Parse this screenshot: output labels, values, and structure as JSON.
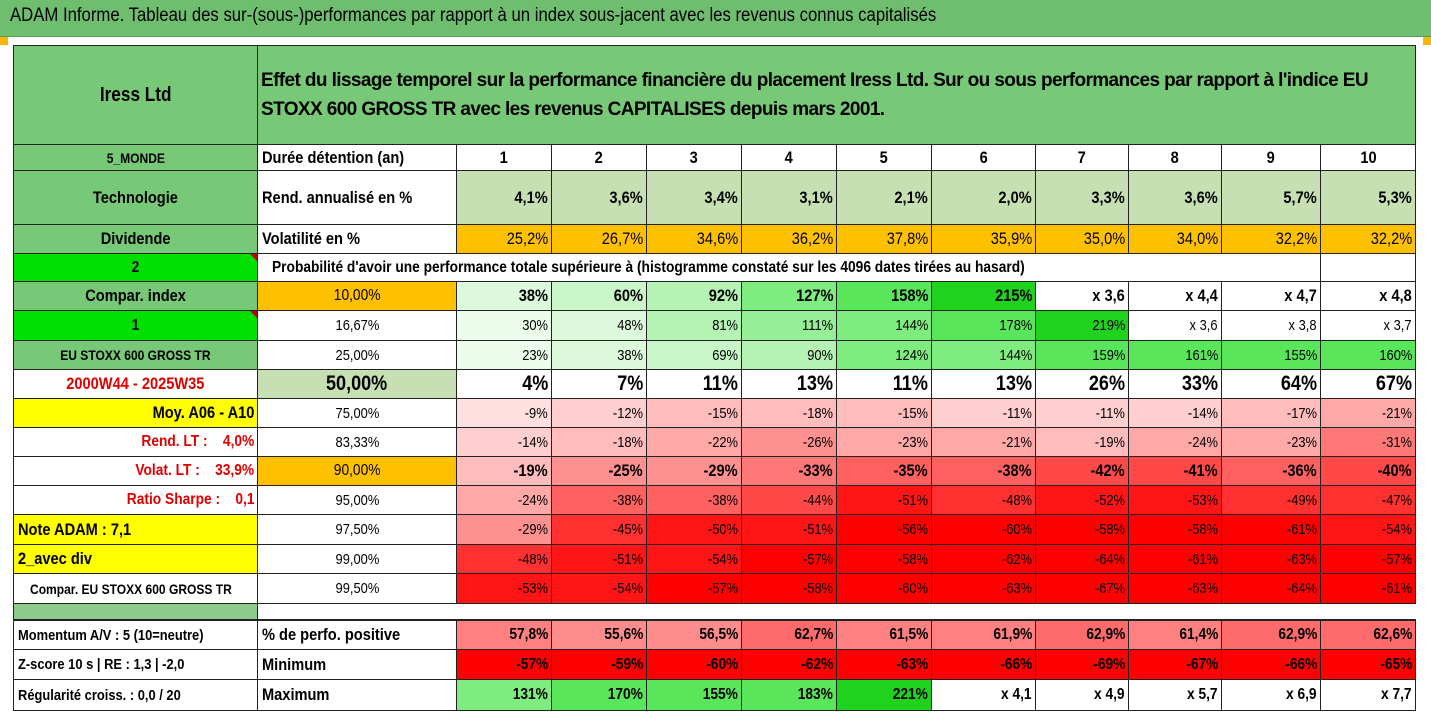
{
  "title": "ADAM Informe. Tableau des sur-(sous-)performances par rapport à un index sous-jacent avec les revenus connus capitalisés",
  "header": {
    "company": "Iress Ltd",
    "description": "Effet du lissage temporel sur la performance financière du placement Iress Ltd. Sur ou sous performances par rapport à l'indice EU STOXX 600 GROSS TR avec les revenus CAPITALISES depuis mars 2001."
  },
  "left_labels": {
    "zone": "5_MONDE",
    "sector": "Technologie",
    "dividend": "Dividende",
    "flag1": "2",
    "compar_index": "Compar. index",
    "flag2": "1",
    "index_name": "EU STOXX 600 GROSS TR",
    "period": "2000W44 - 2025W35",
    "moy": "Moy. A06 - A10",
    "rend_lt": "Rend. LT :    4,0%",
    "volat_lt": "Volat. LT :    33,9%",
    "sharpe": "Ratio Sharpe :    0,1",
    "note": "Note ADAM : 7,1",
    "avec_div": "2_avec div",
    "compar_full": "Compar. EU STOXX 600 GROSS TR"
  },
  "years_label": "Durée détention (an)",
  "years": [
    "1",
    "2",
    "3",
    "4",
    "5",
    "6",
    "7",
    "8",
    "9",
    "10"
  ],
  "rend_label": "Rend. annualisé en %",
  "rend": [
    "4,1%",
    "3,6%",
    "3,4%",
    "3,1%",
    "2,1%",
    "2,0%",
    "3,3%",
    "3,6%",
    "5,7%",
    "5,3%"
  ],
  "vol_label": "Volatilité en %",
  "vol": [
    "25,2%",
    "26,7%",
    "34,6%",
    "36,2%",
    "37,8%",
    "35,9%",
    "35,0%",
    "34,0%",
    "32,2%",
    "32,2%"
  ],
  "prob_label": "Probabilité d'avoir une performance totale supérieure à (histogramme constaté sur les 4096 dates tirées au hasard)",
  "prob_rows": [
    {
      "p": "10,00%",
      "v": [
        "38%",
        "60%",
        "92%",
        "127%",
        "158%",
        "215%",
        "x 3,6",
        "x 4,4",
        "x 4,7",
        "x 4,8"
      ]
    },
    {
      "p": "16,67%",
      "v": [
        "30%",
        "48%",
        "81%",
        "111%",
        "144%",
        "178%",
        "219%",
        "x 3,6",
        "x 3,8",
        "x 3,7"
      ]
    },
    {
      "p": "25,00%",
      "v": [
        "23%",
        "38%",
        "69%",
        "90%",
        "124%",
        "144%",
        "159%",
        "161%",
        "155%",
        "160%"
      ]
    },
    {
      "p": "50,00%",
      "v": [
        "4%",
        "7%",
        "11%",
        "13%",
        "11%",
        "13%",
        "26%",
        "33%",
        "64%",
        "67%"
      ]
    },
    {
      "p": "75,00%",
      "v": [
        "-9%",
        "-12%",
        "-15%",
        "-18%",
        "-15%",
        "-11%",
        "-11%",
        "-14%",
        "-17%",
        "-21%"
      ]
    },
    {
      "p": "83,33%",
      "v": [
        "-14%",
        "-18%",
        "-22%",
        "-26%",
        "-23%",
        "-21%",
        "-19%",
        "-24%",
        "-23%",
        "-31%"
      ]
    },
    {
      "p": "90,00%",
      "v": [
        "-19%",
        "-25%",
        "-29%",
        "-33%",
        "-35%",
        "-38%",
        "-42%",
        "-41%",
        "-36%",
        "-40%"
      ]
    },
    {
      "p": "95,00%",
      "v": [
        "-24%",
        "-38%",
        "-38%",
        "-44%",
        "-51%",
        "-48%",
        "-52%",
        "-53%",
        "-49%",
        "-47%"
      ]
    },
    {
      "p": "97,50%",
      "v": [
        "-29%",
        "-45%",
        "-50%",
        "-51%",
        "-56%",
        "-60%",
        "-58%",
        "-58%",
        "-61%",
        "-54%"
      ]
    },
    {
      "p": "99,00%",
      "v": [
        "-48%",
        "-51%",
        "-54%",
        "-57%",
        "-58%",
        "-62%",
        "-64%",
        "-61%",
        "-63%",
        "-57%"
      ]
    },
    {
      "p": "99,50%",
      "v": [
        "-53%",
        "-54%",
        "-57%",
        "-58%",
        "-60%",
        "-63%",
        "-67%",
        "-63%",
        "-64%",
        "-61%"
      ]
    }
  ],
  "bottom_rows": [
    {
      "left": "Momentum A/V : 5 (10=neutre)",
      "label": "% de perfo. positive",
      "v": [
        "57,8%",
        "55,6%",
        "56,5%",
        "62,7%",
        "61,5%",
        "61,9%",
        "62,9%",
        "61,4%",
        "62,9%",
        "62,6%"
      ]
    },
    {
      "left": "Z-score 10 s  |  RE : 1,3  |  -2,0",
      "label": "Minimum",
      "v": [
        "-57%",
        "-59%",
        "-60%",
        "-62%",
        "-63%",
        "-66%",
        "-69%",
        "-67%",
        "-66%",
        "-65%"
      ]
    },
    {
      "left": "Régularité croiss. : 0,0 / 20",
      "label": "Maximum",
      "v": [
        "131%",
        "170%",
        "155%",
        "183%",
        "221%",
        "x 4,1",
        "x 4,9",
        "x 5,7",
        "x 6,9",
        "x 7,7"
      ]
    }
  ],
  "colors": {
    "title_green": "#6FBE6F",
    "label_green": "#77C877",
    "bright_green": "#00E000",
    "yellow": "#FFFF00",
    "orange": "#FFC000",
    "rend_fill": "#C6E0B4",
    "red_text": "#E00000",
    "stripe": "#8CCB8C"
  }
}
